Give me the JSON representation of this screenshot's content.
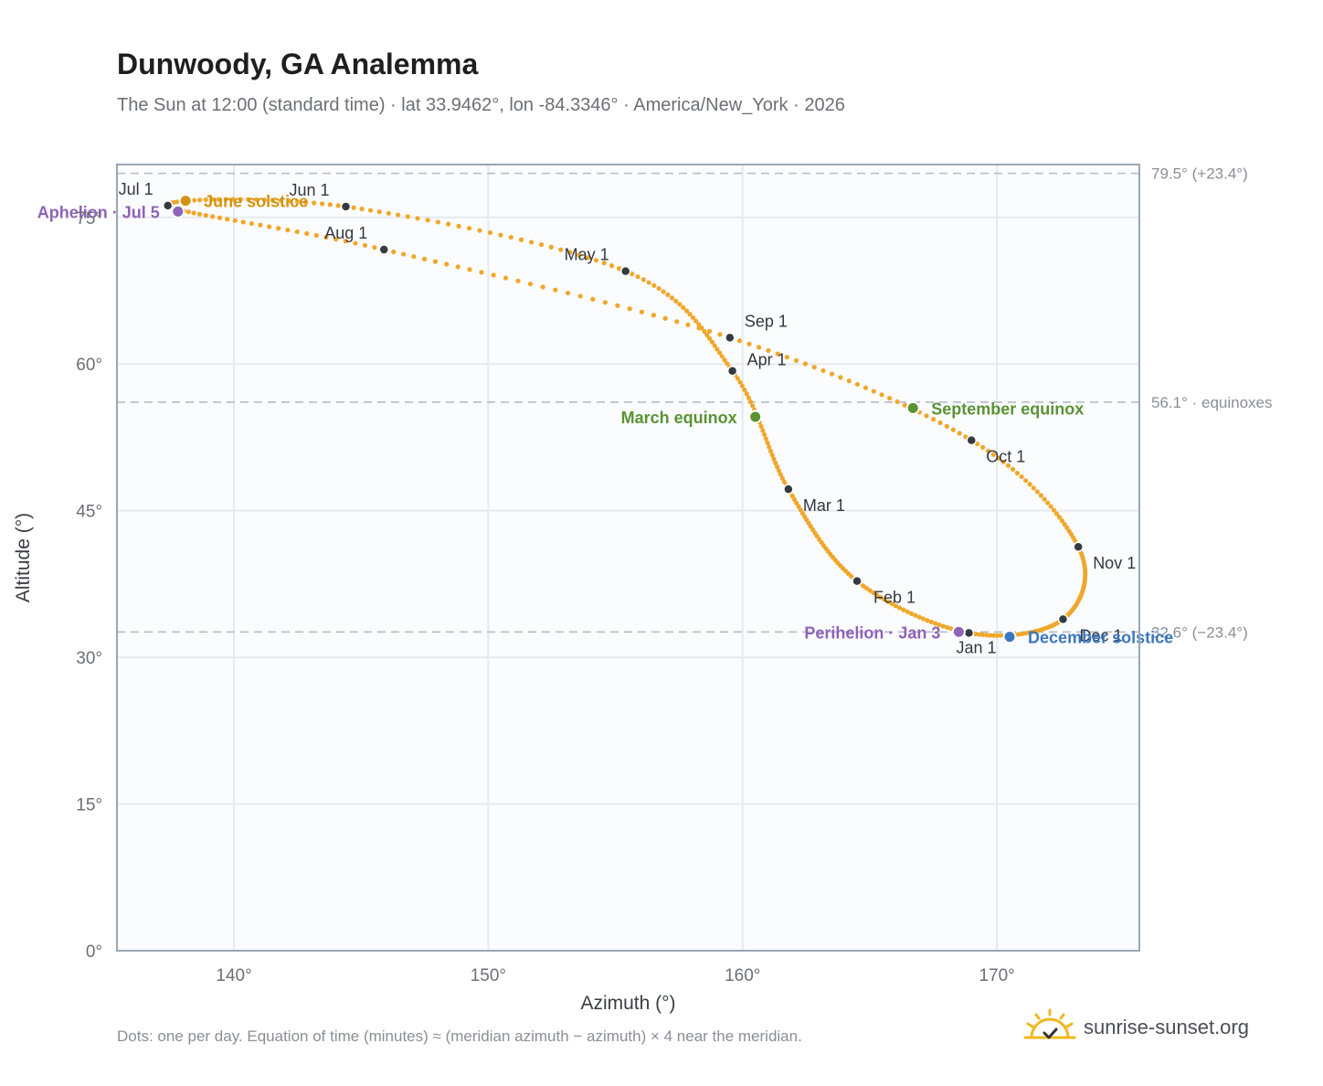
{
  "header": {
    "title": "Dunwoody, GA Analemma",
    "subtitle": "The Sun at 12:00 (standard time) · lat 33.9462°, lon -84.3346° · America/New_York · 2026"
  },
  "footer": {
    "note": "Dots: one per day. Equation of time (minutes) ≈ (meridian azimuth − azimuth) × 4 near the meridian.",
    "brand": "sunrise-sunset.org"
  },
  "colors": {
    "curve": "#f0a72a",
    "month_dot": "#343a40",
    "solstice_june": "#d4930f",
    "solstice_december": "#3a78bf",
    "equinox": "#5a9234",
    "apsis": "#8e63b8",
    "plot_bg": "#fbfcfe",
    "grid": "#e6e9ee",
    "frame": "#9aa6b4",
    "ref_line": "#b4bcc6"
  },
  "chart_data": {
    "type": "scatter",
    "xlabel": "Azimuth (°)",
    "ylabel": "Altitude (°)",
    "xlim": [
      135.4,
      175.6
    ],
    "ylim": [
      0,
      80.4
    ],
    "xticks": [
      "140°",
      "150°",
      "160°",
      "170°"
    ],
    "xtick_values": [
      140,
      150,
      160,
      170
    ],
    "yticks": [
      "0°",
      "15°",
      "30°",
      "45°",
      "60°",
      "75°"
    ],
    "ytick_values": [
      0,
      15,
      30,
      45,
      60,
      75
    ],
    "grid": true,
    "reference_lines": [
      {
        "y": 79.5,
        "label": "79.5° (+23.4°)"
      },
      {
        "y": 56.1,
        "label": "56.1° · equinoxes"
      },
      {
        "y": 32.6,
        "label": "32.6° (−23.4°)"
      }
    ],
    "month_markers": [
      {
        "label": "Jan 1",
        "az": 168.9,
        "alt": 32.5
      },
      {
        "label": "Feb 1",
        "az": 164.5,
        "alt": 37.8
      },
      {
        "label": "Mar 1",
        "az": 161.8,
        "alt": 47.2
      },
      {
        "label": "Apr 1",
        "az": 159.6,
        "alt": 59.3
      },
      {
        "label": "May 1",
        "az": 155.4,
        "alt": 69.5
      },
      {
        "label": "Jun 1",
        "az": 144.4,
        "alt": 76.1
      },
      {
        "label": "Jul 1",
        "az": 137.4,
        "alt": 76.2
      },
      {
        "label": "Aug 1",
        "az": 145.9,
        "alt": 71.7
      },
      {
        "label": "Sep 1",
        "az": 159.5,
        "alt": 62.7
      },
      {
        "label": "Oct 1",
        "az": 169.0,
        "alt": 52.2
      },
      {
        "label": "Nov 1",
        "az": 173.2,
        "alt": 41.3
      },
      {
        "label": "Dec 1",
        "az": 172.6,
        "alt": 33.9
      }
    ],
    "events": [
      {
        "label": "June solstice",
        "az": 138.1,
        "alt": 76.7,
        "color": "#d4930f",
        "label_side": "right"
      },
      {
        "label": "Aphelion · Jul 5",
        "az": 137.8,
        "alt": 75.6,
        "color": "#8e63b8",
        "label_side": "left"
      },
      {
        "label": "March equinox",
        "az": 160.5,
        "alt": 54.6,
        "color": "#5a9234",
        "label_side": "left"
      },
      {
        "label": "September equinox",
        "az": 166.7,
        "alt": 55.5,
        "color": "#5a9234",
        "label_side": "right"
      },
      {
        "label": "Perihelion · Jan 3",
        "az": 168.5,
        "alt": 32.6,
        "color": "#8e63b8",
        "label_side": "left"
      },
      {
        "label": "December solstice",
        "az": 170.5,
        "alt": 32.1,
        "color": "#3a78bf",
        "label_side": "right"
      }
    ]
  }
}
